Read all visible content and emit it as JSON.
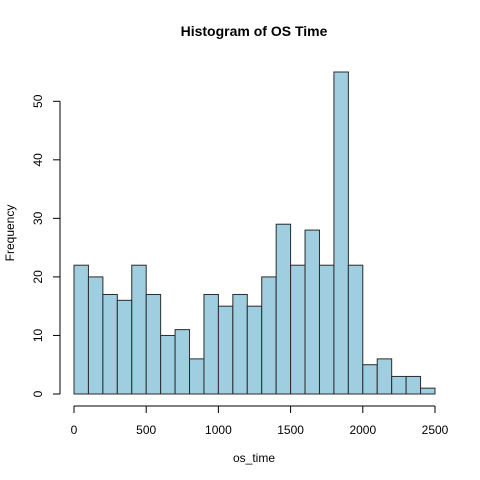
{
  "chart_data": {
    "type": "bar",
    "title": "Histogram of OS Time",
    "xlabel": "os_time",
    "ylabel": "Frequency",
    "bar_color": "#9fcee0",
    "bin_edges": [
      0,
      100,
      200,
      300,
      400,
      500,
      600,
      700,
      800,
      900,
      1000,
      1100,
      1200,
      1300,
      1400,
      1500,
      1600,
      1700,
      1800,
      1900,
      2000,
      2100,
      2200,
      2300,
      2400,
      2500
    ],
    "values": [
      22,
      20,
      17,
      16,
      22,
      17,
      10,
      11,
      6,
      17,
      15,
      17,
      15,
      20,
      29,
      22,
      28,
      22,
      55,
      22,
      5,
      6,
      3,
      3,
      1
    ],
    "xlim": [
      0,
      2500
    ],
    "ylim": [
      0,
      55
    ],
    "x_ticks": [
      0,
      500,
      1000,
      1500,
      2000,
      2500
    ],
    "y_ticks": [
      0,
      10,
      20,
      30,
      40,
      50
    ],
    "x_tick_labels": [
      "0",
      "500",
      "1000",
      "1500",
      "2000",
      "2500"
    ],
    "y_tick_labels": [
      "0",
      "10",
      "20",
      "30",
      "40",
      "50"
    ],
    "grid": false,
    "legend": "none"
  }
}
